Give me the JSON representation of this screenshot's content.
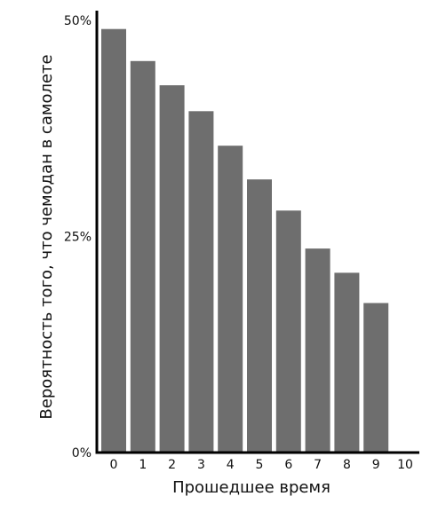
{
  "chart_data": {
    "type": "bar",
    "title": "",
    "xlabel": "Прошедшее время",
    "ylabel": "Вероятность того, что чемодан в самолете",
    "categories": [
      "0",
      "1",
      "2",
      "3",
      "4",
      "5",
      "6",
      "7",
      "8",
      "9",
      "10"
    ],
    "values": [
      49.0,
      45.3,
      42.5,
      39.5,
      35.5,
      31.6,
      28.0,
      23.6,
      20.8,
      17.3,
      null
    ],
    "ylim": [
      0,
      50
    ],
    "y_ticks": [
      {
        "value": 0,
        "label": "0%"
      },
      {
        "value": 25,
        "label": "25%"
      },
      {
        "value": 50,
        "label": "50%"
      }
    ],
    "grid": false,
    "legend": "none",
    "bar_color": "#6e6e6e",
    "axis_color": "#000000"
  }
}
